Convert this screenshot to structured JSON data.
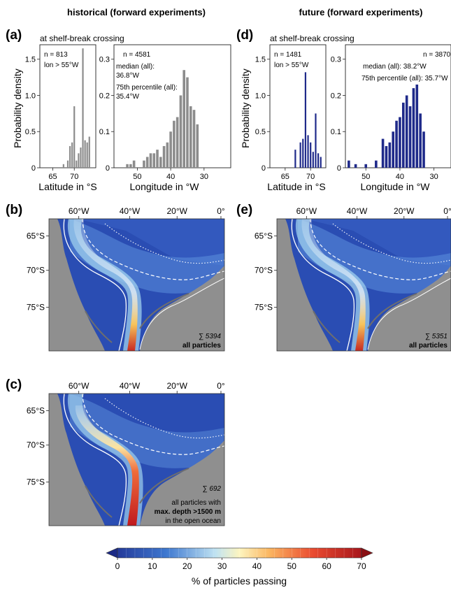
{
  "headers": {
    "historical": "historical (forward experiments)",
    "future": "future (forward experiments)"
  },
  "panel_letters": {
    "a": "(a)",
    "b": "(b)",
    "c": "(c)",
    "d": "(d)",
    "e": "(e)"
  },
  "hist_subtitle": "at shelf-break crossing",
  "axis_text": {
    "ylabel": "Probability density",
    "xlabel_lat": "Latitude in °S",
    "xlabel_lon": "Longitude in °W"
  },
  "panel_a": {
    "lat_stats": [
      "n = 813",
      "lon > 55°W"
    ],
    "lon_stats": [
      "n = 4581",
      "median (all):",
      "36.8°W",
      "75th percentile (all):",
      "35.4°W"
    ]
  },
  "panel_d": {
    "lat_stats": [
      "n = 1481",
      "lon > 55°W"
    ],
    "lon_stats": [
      "n = 3870",
      "median (all): 38.2°W",
      "75th percentile (all): 35.7°W"
    ]
  },
  "map_text": {
    "lon_ticks": [
      "60°W",
      "40°W",
      "20°W",
      "0°"
    ],
    "lat_ticks": [
      "65°S",
      "70°S",
      "75°S"
    ],
    "b_sum": "∑ 5394",
    "b_label": "all particles",
    "e_sum": "∑ 5351",
    "e_label": "all particles",
    "c_sum": "∑ 692",
    "c_label_1": "all particles with",
    "c_label_2": "max. depth >1500 m",
    "c_label_3": "in the open ocean"
  },
  "colorbar": {
    "ticks": [
      "0",
      "10",
      "20",
      "30",
      "40",
      "50",
      "60",
      "70"
    ],
    "label": "% of particles passing"
  },
  "colors": {
    "hist_bar": "#8c8c8c",
    "future_bar": "#1f2a8a",
    "land": "#8f8f8f",
    "ocean": "#2a4db3"
  },
  "chart_data": [
    {
      "id": "a-lat",
      "type": "bar",
      "x": [
        67.5,
        68.5,
        69.0,
        69.5,
        70.0,
        70.5,
        71.0,
        71.5,
        72.0,
        72.5,
        73.0,
        73.5
      ],
      "values": [
        0.05,
        0.1,
        0.3,
        0.35,
        0.85,
        0.1,
        0.2,
        0.28,
        1.65,
        0.38,
        0.35,
        0.43
      ],
      "xlim": [
        62,
        75
      ],
      "ylim": [
        0,
        1.7
      ],
      "xticks": [
        65,
        70
      ],
      "yticks": [
        0,
        0.5,
        1.0,
        1.5
      ],
      "ytick_labels": [
        "0",
        "0.5",
        "1.0",
        "1.5"
      ],
      "xlabel": "Latitude in °S",
      "ylabel": "Probability density"
    },
    {
      "id": "a-lon",
      "type": "bar",
      "x": [
        53,
        52,
        51,
        48,
        47,
        46,
        45,
        44,
        43,
        42,
        41,
        40,
        39,
        38,
        37,
        36,
        35,
        34,
        33,
        32
      ],
      "values": [
        0.01,
        0.01,
        0.02,
        0.02,
        0.03,
        0.04,
        0.04,
        0.05,
        0.03,
        0.06,
        0.07,
        0.1,
        0.13,
        0.14,
        0.2,
        0.27,
        0.25,
        0.17,
        0.16,
        0.12
      ],
      "xlim": [
        57,
        22
      ],
      "ylim": [
        0,
        0.34
      ],
      "xticks": [
        50,
        40,
        30
      ],
      "yticks": [
        0,
        0.1,
        0.2,
        0.3
      ],
      "ytick_labels": [
        "0",
        "0.1",
        "0.2",
        "0.3"
      ],
      "xlabel": "Longitude in °W"
    },
    {
      "id": "d-lat",
      "type": "bar",
      "x": [
        67.0,
        68.0,
        68.5,
        69.0,
        69.5,
        70.0,
        70.5,
        71.0,
        71.5,
        72.0
      ],
      "values": [
        0.25,
        0.35,
        0.4,
        1.32,
        0.45,
        0.35,
        0.22,
        0.75,
        0.2,
        0.15
      ],
      "xlim": [
        62,
        73
      ],
      "ylim": [
        0,
        1.7
      ],
      "xticks": [
        65,
        70
      ],
      "yticks": [
        0,
        0.5,
        1.0,
        1.5
      ],
      "ytick_labels": [
        "0",
        "0.5",
        "1.0",
        "1.5"
      ],
      "xlabel": "Latitude in °S",
      "ylabel": "Probability density"
    },
    {
      "id": "d-lon",
      "type": "bar",
      "x": [
        55,
        53,
        50,
        47,
        45,
        44,
        43,
        42,
        41,
        40,
        39,
        38,
        37,
        36,
        35,
        34,
        33
      ],
      "values": [
        0.02,
        0.01,
        0.01,
        0.02,
        0.08,
        0.06,
        0.07,
        0.1,
        0.13,
        0.14,
        0.18,
        0.2,
        0.17,
        0.22,
        0.23,
        0.15,
        0.1
      ],
      "xlim": [
        56,
        25
      ],
      "ylim": [
        0,
        0.34
      ],
      "xticks": [
        50,
        40,
        30
      ],
      "yticks": [
        0,
        0.1,
        0.2,
        0.3
      ],
      "ytick_labels": [
        "0",
        "0.1",
        "0.2",
        "0.3"
      ],
      "xlabel": "Longitude in °W"
    },
    {
      "id": "colorbar",
      "type": "heatmap",
      "min": 0,
      "max": 70,
      "step": 2.5,
      "extend": "both",
      "label": "% of particles passing"
    }
  ]
}
